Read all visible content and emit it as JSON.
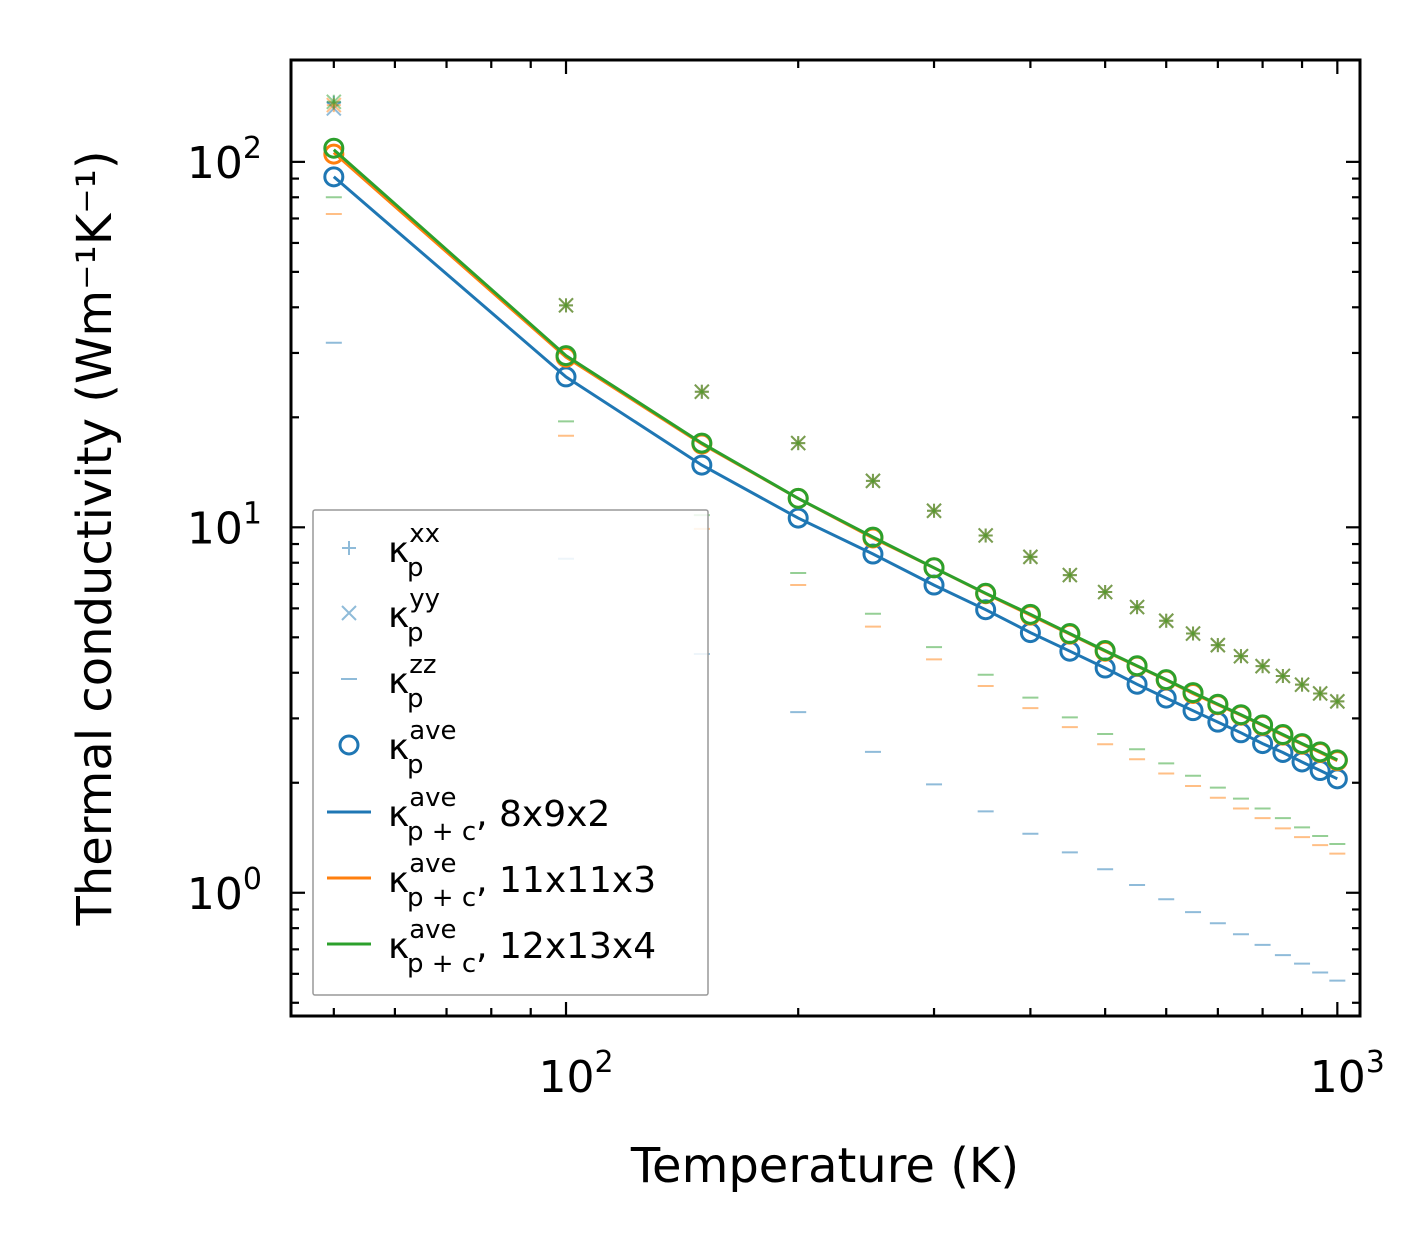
{
  "chart_data": {
    "type": "line",
    "xlabel": "Temperature (K)",
    "ylabel": "Thermal conductivity (Wm⁻¹K⁻¹)",
    "xscale": "log",
    "yscale": "log",
    "xlim": [
      44,
      1070
    ],
    "ylim": [
      0.46,
      190
    ],
    "x_ticks": [
      {
        "value": 100,
        "base": "10",
        "exp": "2"
      },
      {
        "value": 1000,
        "base": "10",
        "exp": "3"
      }
    ],
    "y_ticks": [
      {
        "value": 1,
        "base": "10",
        "exp": "0"
      },
      {
        "value": 10,
        "base": "10",
        "exp": "1"
      },
      {
        "value": 100,
        "base": "10",
        "exp": "2"
      }
    ],
    "x": [
      50,
      100,
      150,
      200,
      250,
      300,
      350,
      400,
      450,
      500,
      550,
      600,
      650,
      700,
      750,
      800,
      850,
      900,
      950,
      1000
    ],
    "colors": {
      "blue": "#1f77b4",
      "orange": "#ff7f0e",
      "green": "#2ca02c"
    },
    "meshes": [
      {
        "name": "8x9x2",
        "color": "#1f77b4",
        "kxx": [
          145,
          40.5,
          23.5,
          17.0,
          13.4,
          11.1,
          9.5,
          8.3,
          7.4,
          6.65,
          6.05,
          5.55,
          5.12,
          4.76,
          4.44,
          4.17,
          3.92,
          3.71,
          3.51,
          3.34
        ],
        "kyy": [
          140,
          40.5,
          23.5,
          17.0,
          13.4,
          11.1,
          9.5,
          8.3,
          7.4,
          6.65,
          6.05,
          5.55,
          5.12,
          4.76,
          4.44,
          4.17,
          3.92,
          3.71,
          3.51,
          3.34
        ],
        "kzz": [
          32,
          8.2,
          4.5,
          3.12,
          2.43,
          1.98,
          1.67,
          1.45,
          1.29,
          1.16,
          1.05,
          0.96,
          0.885,
          0.825,
          0.77,
          0.72,
          0.675,
          0.64,
          0.605,
          0.575
        ],
        "kave": [
          91,
          25.8,
          14.8,
          10.6,
          8.45,
          6.95,
          5.95,
          5.15,
          4.58,
          4.12,
          3.72,
          3.41,
          3.15,
          2.93,
          2.74,
          2.56,
          2.42,
          2.28,
          2.16,
          2.05
        ],
        "kpc": [
          91,
          25.8,
          14.8,
          10.6,
          8.45,
          6.95,
          5.95,
          5.15,
          4.58,
          4.12,
          3.72,
          3.41,
          3.15,
          2.93,
          2.74,
          2.56,
          2.42,
          2.28,
          2.16,
          2.05
        ]
      },
      {
        "name": "11x11x3",
        "color": "#ff7f0e",
        "kxx": [
          143,
          40.5,
          23.5,
          17.0,
          13.4,
          11.1,
          9.5,
          8.3,
          7.4,
          6.65,
          6.05,
          5.55,
          5.12,
          4.76,
          4.44,
          4.17,
          3.92,
          3.71,
          3.51,
          3.34
        ],
        "kyy": [
          143,
          40.5,
          23.5,
          17.0,
          13.4,
          11.1,
          9.5,
          8.3,
          7.4,
          6.65,
          6.05,
          5.55,
          5.12,
          4.76,
          4.44,
          4.17,
          3.92,
          3.71,
          3.51,
          3.34
        ],
        "kzz": [
          72,
          17.8,
          9.9,
          6.95,
          5.35,
          4.35,
          3.68,
          3.2,
          2.84,
          2.55,
          2.32,
          2.12,
          1.96,
          1.82,
          1.7,
          1.6,
          1.5,
          1.42,
          1.35,
          1.28
        ],
        "kave": [
          105,
          29.2,
          16.9,
          12.0,
          9.35,
          7.75,
          6.58,
          5.75,
          5.1,
          4.58,
          4.17,
          3.82,
          3.51,
          3.27,
          3.06,
          2.87,
          2.7,
          2.55,
          2.42,
          2.3
        ],
        "kpc": [
          106,
          29.2,
          16.9,
          12.0,
          9.35,
          7.75,
          6.58,
          5.75,
          5.1,
          4.58,
          4.17,
          3.82,
          3.51,
          3.27,
          3.06,
          2.87,
          2.7,
          2.55,
          2.42,
          2.3
        ]
      },
      {
        "name": "12x13x4",
        "color": "#2ca02c",
        "kxx": [
          146,
          40.5,
          23.5,
          17.0,
          13.4,
          11.1,
          9.5,
          8.3,
          7.4,
          6.65,
          6.05,
          5.55,
          5.12,
          4.76,
          4.44,
          4.17,
          3.92,
          3.71,
          3.51,
          3.34
        ],
        "kyy": [
          146,
          40.5,
          23.5,
          17.0,
          13.4,
          11.1,
          9.5,
          8.3,
          7.4,
          6.65,
          6.05,
          5.55,
          5.12,
          4.76,
          4.44,
          4.17,
          3.92,
          3.71,
          3.51,
          3.34
        ],
        "kzz": [
          80,
          19.5,
          10.8,
          7.5,
          5.8,
          4.7,
          3.95,
          3.42,
          3.02,
          2.72,
          2.47,
          2.26,
          2.09,
          1.94,
          1.81,
          1.7,
          1.6,
          1.51,
          1.43,
          1.36
        ],
        "kave": [
          109,
          29.5,
          17.0,
          12.0,
          9.4,
          7.75,
          6.6,
          5.78,
          5.12,
          4.6,
          4.18,
          3.83,
          3.53,
          3.28,
          3.07,
          2.88,
          2.71,
          2.56,
          2.43,
          2.31
        ],
        "kpc": [
          108,
          29.5,
          17.0,
          12.0,
          9.4,
          7.75,
          6.6,
          5.78,
          5.12,
          4.6,
          4.18,
          3.83,
          3.53,
          3.28,
          3.07,
          2.88,
          2.71,
          2.56,
          2.43,
          2.31
        ]
      }
    ],
    "legend": {
      "placement": "lower-left",
      "entries": [
        {
          "marker": "plus",
          "color": "#1f77b4",
          "sym": "κ",
          "sub": "p",
          "sup": "xx",
          "suffix": ""
        },
        {
          "marker": "x",
          "color": "#1f77b4",
          "sym": "κ",
          "sub": "p",
          "sup": "yy",
          "suffix": ""
        },
        {
          "marker": "dash",
          "color": "#1f77b4",
          "sym": "κ",
          "sub": "p",
          "sup": "zz",
          "suffix": ""
        },
        {
          "marker": "circle",
          "color": "#1f77b4",
          "sym": "κ",
          "sub": "p",
          "sup": "ave",
          "suffix": ""
        },
        {
          "marker": "line",
          "color": "#1f77b4",
          "sym": "κ",
          "sub": "p + c",
          "sup": "ave",
          "suffix": ", 8x9x2"
        },
        {
          "marker": "line",
          "color": "#ff7f0e",
          "sym": "κ",
          "sub": "p + c",
          "sup": "ave",
          "suffix": ", 11x11x3"
        },
        {
          "marker": "line",
          "color": "#2ca02c",
          "sym": "κ",
          "sub": "p + c",
          "sup": "ave",
          "suffix": ", 12x13x4"
        }
      ]
    }
  }
}
